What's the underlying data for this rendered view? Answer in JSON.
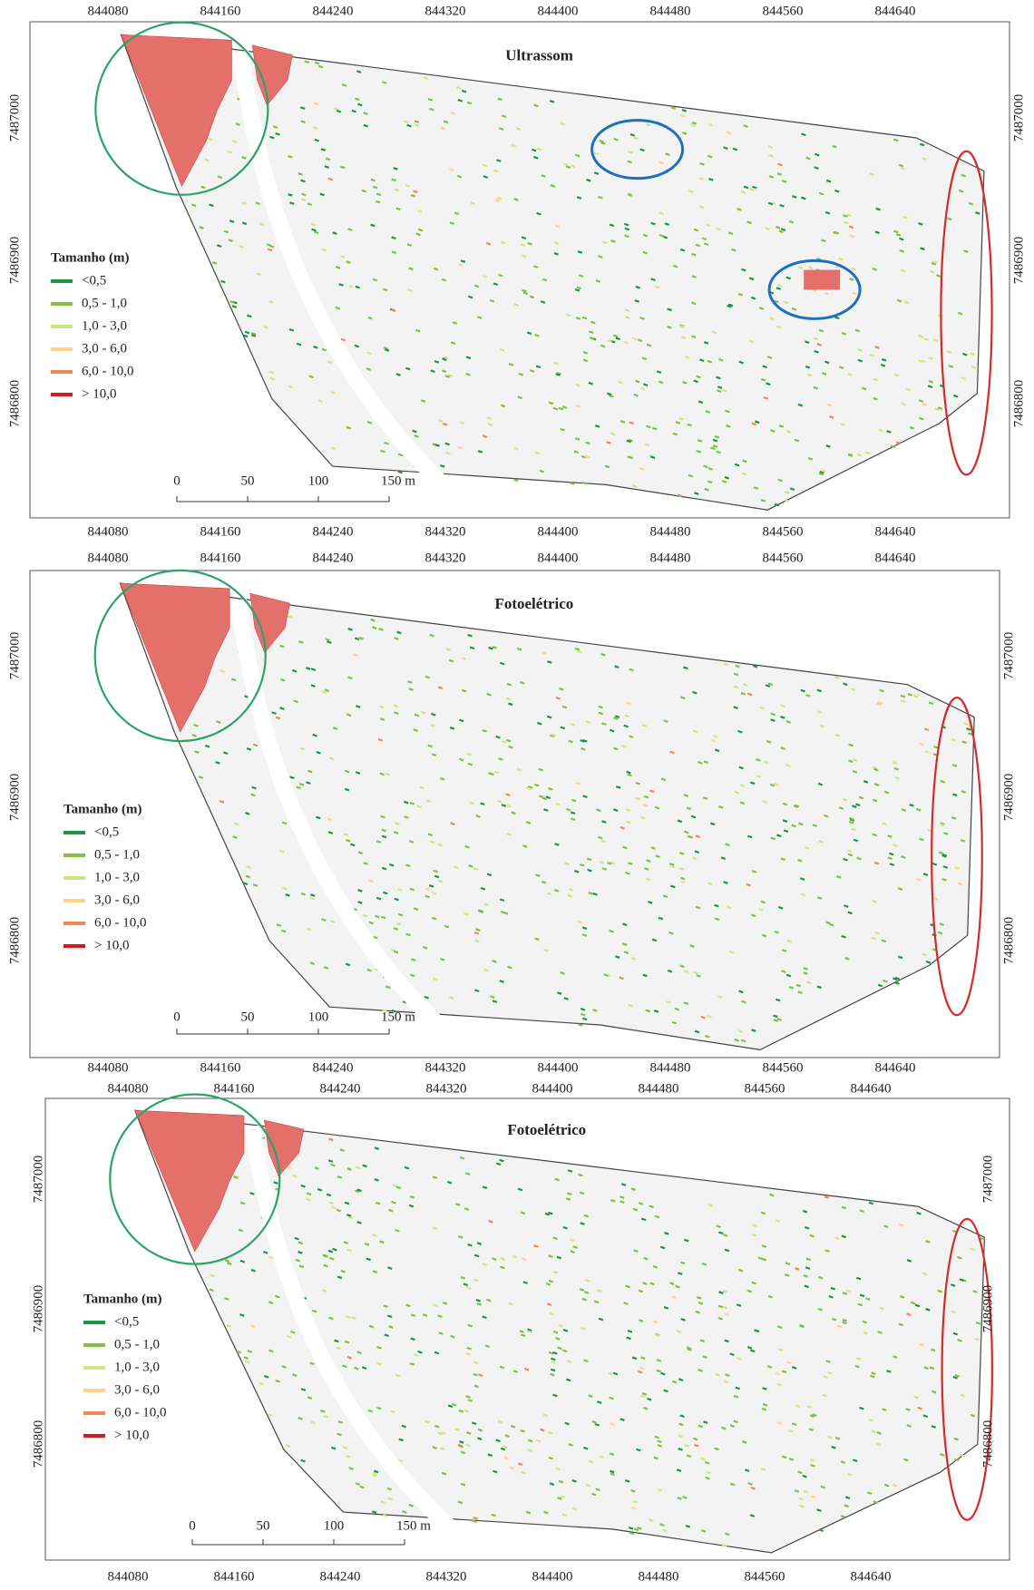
{
  "panels": [
    {
      "title": "Ultrassom",
      "x_ticks": [
        844080,
        844160,
        844240,
        844320,
        844400,
        844480,
        844560,
        844640
      ],
      "y_ticks": [
        7487000,
        7486900,
        7486800
      ],
      "legend": {
        "title": "Tamanho (m)",
        "items": [
          {
            "label": "<0,5",
            "color": "#1a9641"
          },
          {
            "label": "0,5 - 1,0",
            "color": "#7fc241"
          },
          {
            "label": "1,0 - 3,0",
            "color": "#cde67f"
          },
          {
            "label": "3,0 - 6,0",
            "color": "#fdd38a"
          },
          {
            "label": "6,0 - 10,0",
            "color": "#f4874f"
          },
          {
            "label": "> 10,0",
            "color": "#d7191c"
          }
        ]
      },
      "scale_bar": [
        0,
        50,
        100,
        "150 m"
      ]
    },
    {
      "title": "Fotoelétrico",
      "x_ticks": [
        844080,
        844160,
        844240,
        844320,
        844400,
        844480,
        844560,
        844640
      ],
      "y_ticks": [
        7487000,
        7486900,
        7486800
      ],
      "legend": {
        "title": "Tamanho (m)",
        "items": [
          {
            "label": "<0,5",
            "color": "#1a9641"
          },
          {
            "label": "0,5 - 1,0",
            "color": "#7fc241"
          },
          {
            "label": "1,0 - 3,0",
            "color": "#cde67f"
          },
          {
            "label": "3,0 - 6,0",
            "color": "#fdd38a"
          },
          {
            "label": "6,0 - 10,0",
            "color": "#f4874f"
          },
          {
            "label": "> 10,0",
            "color": "#d7191c"
          }
        ]
      },
      "scale_bar": [
        0,
        50,
        100,
        "150 m"
      ]
    },
    {
      "title": "Fotoelétrico",
      "x_ticks": [
        844080,
        844160,
        844240,
        844320,
        844400,
        844480,
        844560,
        844640
      ],
      "y_ticks": [
        7487000,
        7486900,
        7486800
      ],
      "legend": {
        "title": "Tamanho (m)",
        "items": [
          {
            "label": "<0,5",
            "color": "#1a9641"
          },
          {
            "label": "0,5 - 1,0",
            "color": "#7fc241"
          },
          {
            "label": "1,0 - 3,0",
            "color": "#cde67f"
          },
          {
            "label": "3,0 - 6,0",
            "color": "#fdd38a"
          },
          {
            "label": "6,0 - 10,0",
            "color": "#f4874f"
          },
          {
            "label": "> 10,0",
            "color": "#d7191c"
          }
        ]
      },
      "scale_bar": [
        0,
        50,
        100,
        "150 m"
      ]
    }
  ]
}
